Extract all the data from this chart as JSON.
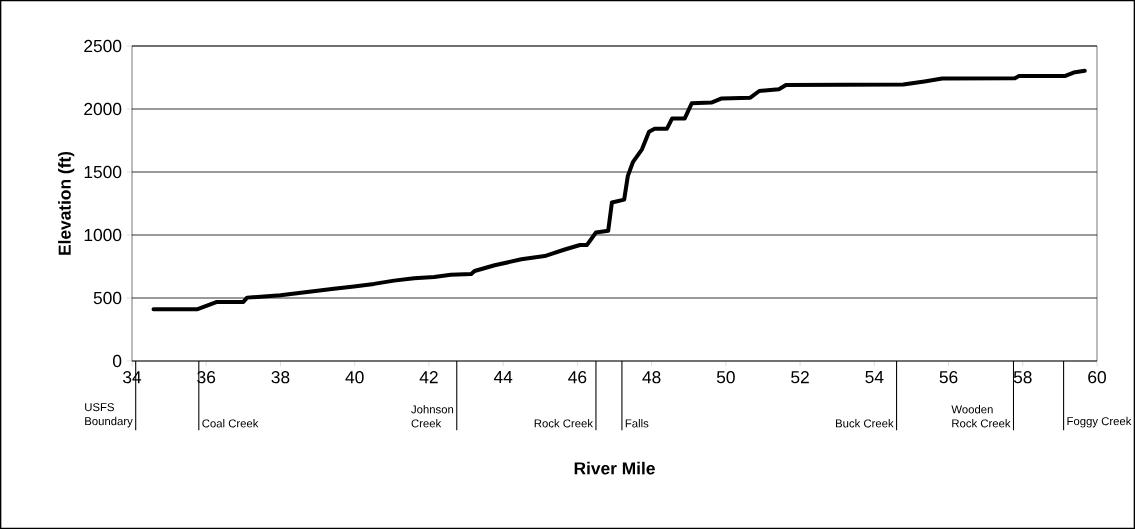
{
  "chart_data": {
    "type": "line",
    "xlabel": "River Mile",
    "ylabel": "Elevation (ft)",
    "color": "#000000",
    "marker": "none",
    "line_style": "solid",
    "grid": "y",
    "xlim": [
      34,
      60
    ],
    "xticks": [
      34,
      36,
      38,
      40,
      42,
      44,
      46,
      48,
      50,
      52,
      54,
      56,
      58,
      60
    ],
    "ylim": [
      0,
      2500
    ],
    "yticks": [
      0,
      500,
      1000,
      1500,
      2000,
      2500
    ],
    "x": [
      34.58,
      35.75,
      36.29,
      37.0,
      37.1,
      38.0,
      38.72,
      39.44,
      39.98,
      40.52,
      41.06,
      41.6,
      42.14,
      42.59,
      43.14,
      43.23,
      43.77,
      44.49,
      45.12,
      45.66,
      46.07,
      46.26,
      46.5,
      46.83,
      46.93,
      47.26,
      47.36,
      47.5,
      47.74,
      47.93,
      48.08,
      48.41,
      48.55,
      48.89,
      49.08,
      49.61,
      49.89,
      50.66,
      50.9,
      51.43,
      51.62,
      54.78,
      55.35,
      55.83,
      57.79,
      57.89,
      59.13,
      59.37,
      59.67
    ],
    "values": [
      410,
      410,
      469,
      469,
      503,
      521,
      547,
      573,
      591,
      612,
      638,
      656,
      667,
      685,
      690,
      714,
      760,
      807,
      833,
      885,
      921,
      921,
      1020,
      1034,
      1258,
      1281,
      1469,
      1581,
      1680,
      1820,
      1843,
      1843,
      1924,
      1924,
      2045,
      2051,
      2084,
      2090,
      2143,
      2157,
      2191,
      2194,
      2219,
      2242,
      2244,
      2261,
      2261,
      2289,
      2303
    ],
    "ref_lines": [
      {
        "axis": "x",
        "value": 34.1,
        "label": "USFS Boundary"
      },
      {
        "axis": "x",
        "value": 35.8,
        "label": "Coal Creek"
      },
      {
        "axis": "x",
        "value": 42.75,
        "label": "Johnson Creek"
      },
      {
        "axis": "x",
        "value": 46.5,
        "label": "Rock Creek"
      },
      {
        "axis": "x",
        "value": 47.2,
        "label": "Falls"
      },
      {
        "axis": "x",
        "value": 54.6,
        "label": "Buck Creek"
      },
      {
        "axis": "x",
        "value": 57.75,
        "label": "Wooden Rock Creek"
      },
      {
        "axis": "x",
        "value": 59.1,
        "label": "Foggy Creek"
      }
    ]
  }
}
